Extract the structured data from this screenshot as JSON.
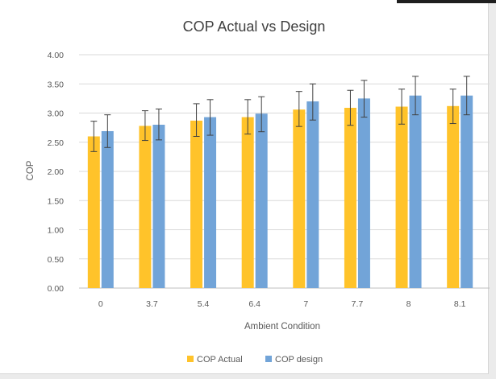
{
  "chart_data": {
    "type": "bar",
    "title": "COP Actual vs Design",
    "xlabel": "Ambient Condition",
    "ylabel": "COP",
    "categories": [
      "0",
      "3.7",
      "5.4",
      "6.4",
      "7",
      "7.7",
      "8",
      "8.1"
    ],
    "y_ticks": [
      "0.00",
      "0.50",
      "1.00",
      "1.50",
      "2.00",
      "2.50",
      "3.00",
      "3.50",
      "4.00"
    ],
    "ylim": [
      0,
      4
    ],
    "grid": "horizontal",
    "legend_position": "bottom",
    "error_bars": true,
    "series": [
      {
        "name": "COP Actual",
        "color": "#ffc32a",
        "values": [
          2.6,
          2.78,
          2.87,
          2.93,
          3.06,
          3.09,
          3.11,
          3.12
        ],
        "error_low": [
          2.34,
          2.53,
          2.6,
          2.64,
          2.77,
          2.79,
          2.81,
          2.82
        ],
        "error_high": [
          2.86,
          3.04,
          3.16,
          3.23,
          3.37,
          3.39,
          3.41,
          3.41
        ]
      },
      {
        "name": "COP design",
        "color": "#72a4d8",
        "values": [
          2.69,
          2.8,
          2.93,
          2.99,
          3.2,
          3.25,
          3.3,
          3.3
        ],
        "error_low": [
          2.41,
          2.54,
          2.62,
          2.68,
          2.88,
          2.93,
          2.97,
          2.97
        ],
        "error_high": [
          2.97,
          3.07,
          3.23,
          3.28,
          3.5,
          3.56,
          3.63,
          3.63
        ]
      }
    ]
  }
}
